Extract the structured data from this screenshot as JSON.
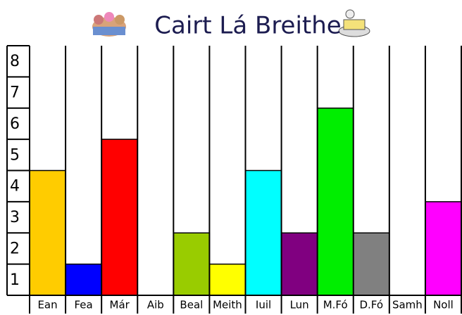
{
  "chart_data": {
    "type": "bar",
    "title": "Cairt Lá Breithe",
    "categories": [
      "Ean",
      "Fea",
      "Már",
      "Aib",
      "Beal",
      "Meith",
      "Iuil",
      "Lun",
      "M.Fó",
      "D.Fó",
      "Samh",
      "Noll"
    ],
    "values": [
      4,
      1,
      5,
      0,
      2,
      1,
      4,
      2,
      6,
      2,
      0,
      3
    ],
    "colors": [
      "#ffcc00",
      "#0000ff",
      "#ff0000",
      null,
      "#99cc00",
      "#ffff00",
      "#00ffff",
      "#800080",
      "#00ee00",
      "#808080",
      null,
      "#ff00ff"
    ],
    "ylim": [
      0,
      8
    ],
    "yticks": [
      1,
      2,
      3,
      4,
      5,
      6,
      7,
      8
    ]
  }
}
